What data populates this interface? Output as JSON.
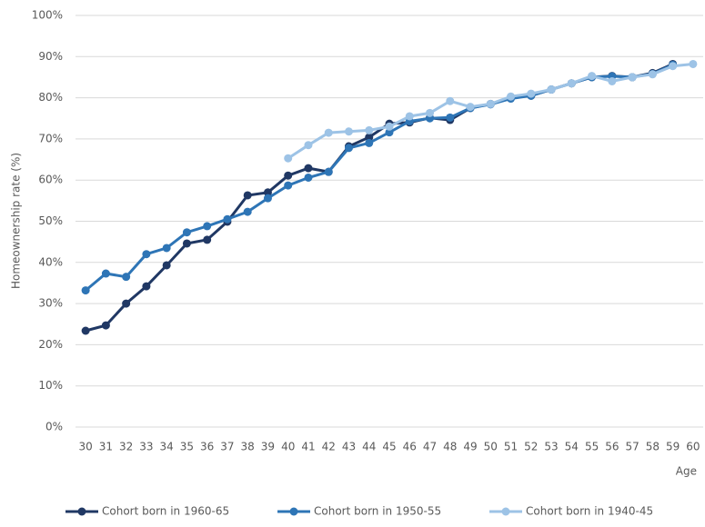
{
  "chart_data": {
    "type": "line",
    "y_label": "Homeownership rate (%)",
    "x_label": "Age",
    "categories": [
      "30",
      "31",
      "32",
      "33",
      "34",
      "35",
      "36",
      "37",
      "38",
      "39",
      "40",
      "41",
      "42",
      "43",
      "44",
      "45",
      "46",
      "47",
      "48",
      "49",
      "50",
      "51",
      "52",
      "53",
      "54",
      "55",
      "56",
      "57",
      "58",
      "59",
      "60"
    ],
    "series": [
      {
        "name": "Cohort born in 1960-65",
        "color": "#203864",
        "values": [
          23.4,
          24.7,
          30.0,
          34.2,
          39.3,
          44.6,
          45.5,
          49.9,
          56.3,
          57.0,
          61.1,
          62.9,
          62.0,
          68.2,
          70.4,
          73.7,
          74.0,
          75.1,
          74.6,
          77.5,
          78.5,
          80.0,
          80.5,
          82.0,
          83.5,
          85.0,
          85.3,
          85.0,
          86.0,
          88.2,
          null
        ]
      },
      {
        "name": "Cohort born in 1950-55",
        "color": "#2e75b6",
        "values": [
          33.2,
          37.3,
          36.5,
          42.0,
          43.5,
          47.3,
          48.8,
          50.5,
          52.3,
          55.6,
          58.7,
          60.6,
          62.0,
          67.8,
          69.0,
          71.6,
          74.3,
          75.0,
          75.2,
          77.5,
          78.4,
          79.8,
          80.5,
          82.0,
          83.5,
          85.0,
          85.2,
          85.0,
          85.8,
          88.0,
          null
        ]
      },
      {
        "name": "Cohort born in 1940-45",
        "color": "#9dc3e6",
        "values": [
          null,
          null,
          null,
          null,
          null,
          null,
          null,
          null,
          null,
          null,
          65.3,
          68.5,
          71.5,
          71.8,
          72.1,
          73.0,
          75.5,
          76.3,
          79.2,
          77.8,
          78.5,
          80.3,
          81.0,
          82.0,
          83.5,
          85.3,
          84.0,
          85.0,
          85.7,
          87.7,
          88.2
        ]
      }
    ],
    "ylim": [
      0,
      100
    ],
    "yticks": [
      {
        "value": 0,
        "label": "0%"
      },
      {
        "value": 10,
        "label": "10%"
      },
      {
        "value": 20,
        "label": "20%"
      },
      {
        "value": 30,
        "label": "30%"
      },
      {
        "value": 40,
        "label": "40%"
      },
      {
        "value": 50,
        "label": "50%"
      },
      {
        "value": 60,
        "label": "60%"
      },
      {
        "value": 70,
        "label": "70%"
      },
      {
        "value": 80,
        "label": "80%"
      },
      {
        "value": 90,
        "label": "90%"
      },
      {
        "value": 100,
        "label": "100%"
      }
    ],
    "grid": true,
    "legend": "bottom"
  }
}
